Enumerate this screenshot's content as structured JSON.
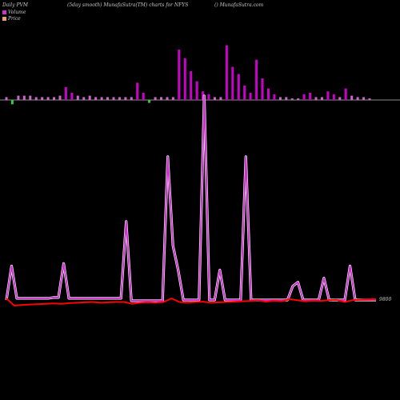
{
  "header": {
    "left": "Daily PVM",
    "center": "(5day smooth) MunafaSutra(TM) charts for NFYS",
    "right": "() MunafaSutra.com"
  },
  "legend": [
    {
      "label": "Volume",
      "color": "#cc33cc"
    },
    {
      "label": "Price",
      "color": "#e8a070"
    }
  ],
  "colors": {
    "background": "#000000",
    "volume_up": "#cc00cc",
    "volume_down": "#33cc33",
    "volume_flat": "#cc66cc",
    "smooth_line": "#cc33cc",
    "price_line": "#ff0000",
    "baseline": "#bbbbbb"
  },
  "chart_data": {
    "type": "bar",
    "title": "(5day smooth) MunafaSutra(TM) charts for NFYS",
    "price_label": "9800",
    "series": [
      {
        "name": "Volume",
        "values": [
          2,
          3,
          3,
          3,
          3,
          2,
          2,
          2,
          2,
          3,
          9,
          5,
          3,
          2,
          3,
          2,
          2,
          2,
          2,
          2,
          2,
          2,
          12,
          5,
          2,
          2,
          2,
          2,
          2,
          35,
          29,
          20,
          13,
          6,
          4,
          2,
          2,
          38,
          23,
          18,
          10,
          5,
          28,
          15,
          8,
          4,
          2,
          2,
          1,
          1,
          4,
          5,
          2,
          2,
          6,
          4,
          2,
          8,
          3,
          2,
          2,
          1
        ],
        "direction": [
          "u",
          "d",
          "u",
          "u",
          "u",
          "u",
          "u",
          "u",
          "u",
          "u",
          "u",
          "u",
          "u",
          "u",
          "u",
          "u",
          "u",
          "u",
          "u",
          "u",
          "u",
          "u",
          "u",
          "u",
          "d",
          "u",
          "u",
          "u",
          "u",
          "u",
          "u",
          "u",
          "u",
          "u",
          "u",
          "u",
          "u",
          "u",
          "u",
          "u",
          "u",
          "u",
          "u",
          "u",
          "u",
          "u",
          "u",
          "u",
          "u",
          "u",
          "u",
          "u",
          "u",
          "u",
          "u",
          "u",
          "u",
          "u",
          "u",
          "u",
          "u",
          "u"
        ]
      },
      {
        "name": "Volume (5 day smooth)",
        "values": [
          3,
          45,
          5,
          5,
          5,
          5,
          5,
          5,
          5,
          6,
          6,
          48,
          5,
          5,
          5,
          5,
          5,
          5,
          5,
          5,
          5,
          5,
          5,
          100,
          2,
          2,
          2,
          2,
          2,
          2,
          2,
          180,
          70,
          40,
          3,
          3,
          3,
          3,
          255,
          3,
          3,
          40,
          3,
          3,
          3,
          3,
          180,
          3,
          3,
          3,
          3,
          3,
          3,
          3,
          3,
          20,
          25,
          3,
          3,
          3,
          3,
          30,
          3,
          3,
          3,
          3,
          45,
          3,
          3,
          3,
          3,
          3
        ]
      },
      {
        "name": "Price",
        "values": [
          9780,
          9760,
          9762,
          9763,
          9764,
          9765,
          9766,
          9765,
          9767,
          9768,
          9769,
          9770,
          9768,
          9769,
          9770,
          9770,
          9765,
          9768,
          9769,
          9768,
          9770,
          9780,
          9770,
          9768,
          9770,
          9771,
          9768,
          9769,
          9770,
          9771,
          9772,
          9773,
          9775,
          9771,
          9774,
          9772,
          9778,
          9775,
          9772,
          9774,
          9773,
          9775,
          9776,
          9770,
          9775,
          9776,
          9777,
          9778
        ]
      }
    ]
  }
}
